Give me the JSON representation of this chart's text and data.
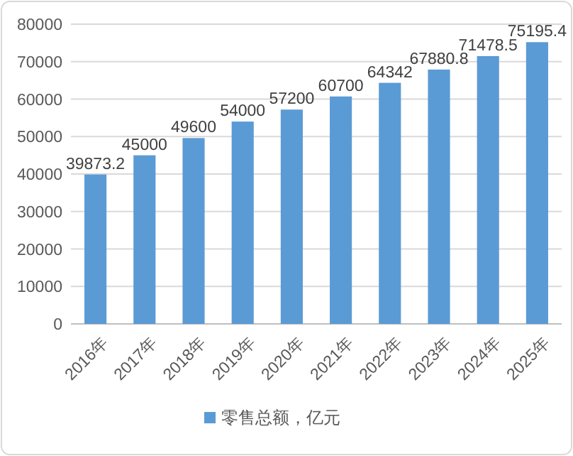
{
  "chart_data": {
    "type": "bar",
    "categories": [
      "2016年",
      "2017年",
      "2018年",
      "2019年",
      "2020年",
      "2021年",
      "2022年",
      "2023年",
      "2024年",
      "2025年"
    ],
    "series": [
      {
        "name": "零售总额，亿元",
        "color": "#5b9bd5",
        "values": [
          39873.2,
          45000,
          49600,
          54000,
          57200,
          60700,
          64342,
          67880.8,
          71478.5,
          75195.4
        ]
      }
    ],
    "ylim": [
      0,
      80000
    ],
    "yticks": [
      0,
      10000,
      20000,
      30000,
      40000,
      50000,
      60000,
      70000,
      80000
    ],
    "grid": "y",
    "legend": "bottom",
    "data_labels": true
  }
}
